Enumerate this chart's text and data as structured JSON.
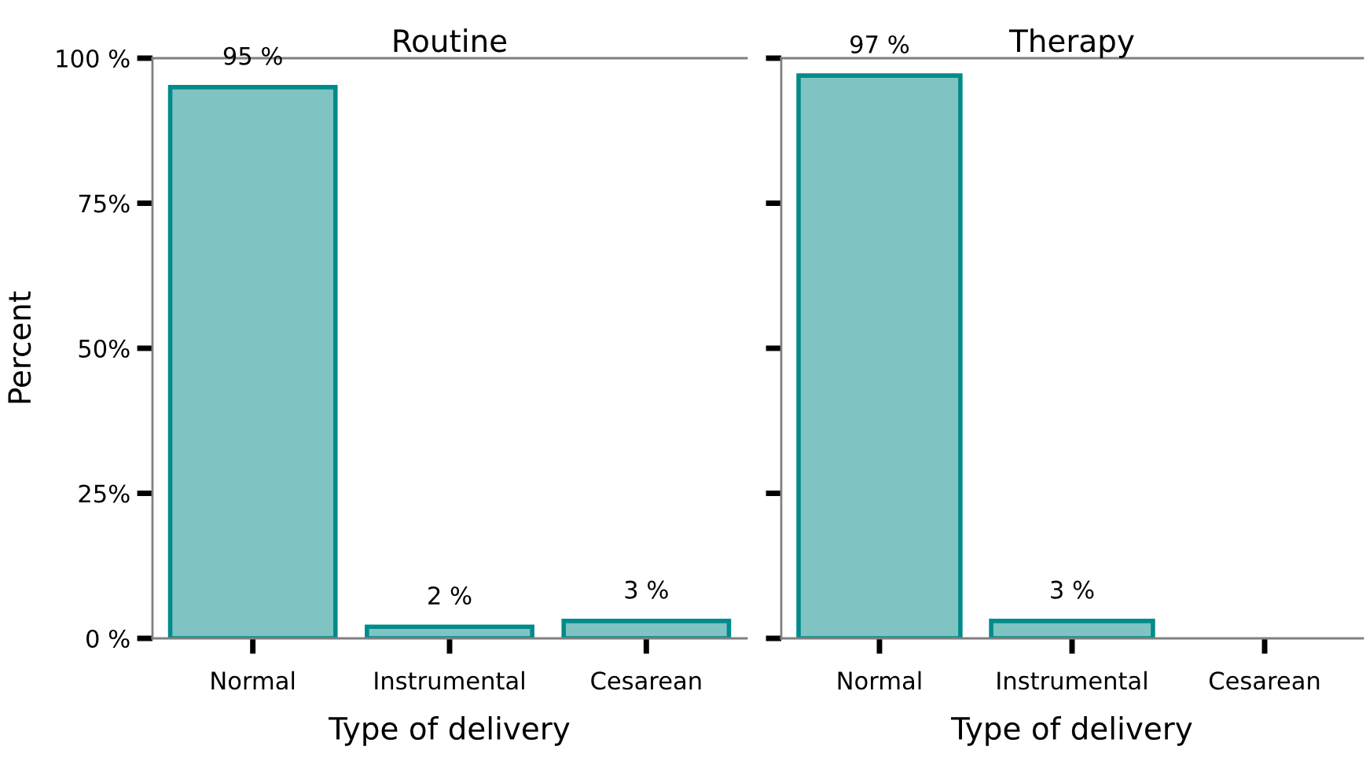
{
  "chart_data": [
    {
      "type": "bar",
      "title": "Routine",
      "xlabel": "Type of delivery",
      "ylabel": "Percent",
      "categories": [
        "Normal",
        "Instrumental",
        "Cesarean"
      ],
      "series": [
        {
          "color": "#80c3c3",
          "values": [
            95,
            2,
            3
          ],
          "value_labels": [
            "95 %",
            "2 %",
            "3 %"
          ]
        }
      ],
      "ylim": [
        0,
        100
      ],
      "yticks": [
        {
          "value": 0,
          "label": "0 %"
        },
        {
          "value": 25,
          "label": "25%"
        },
        {
          "value": 50,
          "label": "50%"
        },
        {
          "value": 75,
          "label": "75%"
        },
        {
          "value": 100,
          "label": "100 %"
        }
      ],
      "grid": false
    },
    {
      "type": "bar",
      "title": "Therapy",
      "xlabel": "Type of delivery",
      "categories": [
        "Normal",
        "Instrumental",
        "Cesarean"
      ],
      "series": [
        {
          "color": "#80c3c3",
          "values": [
            97,
            3,
            0
          ],
          "value_labels": [
            "97 %",
            "3 %",
            null
          ]
        }
      ],
      "ylim": [
        0,
        100
      ],
      "yticks": [
        {
          "value": 0,
          "label": null
        },
        {
          "value": 25,
          "label": null
        },
        {
          "value": 50,
          "label": null
        },
        {
          "value": 75,
          "label": null
        },
        {
          "value": 100,
          "label": null
        }
      ],
      "tick_labels": "x",
      "grid": false
    }
  ]
}
